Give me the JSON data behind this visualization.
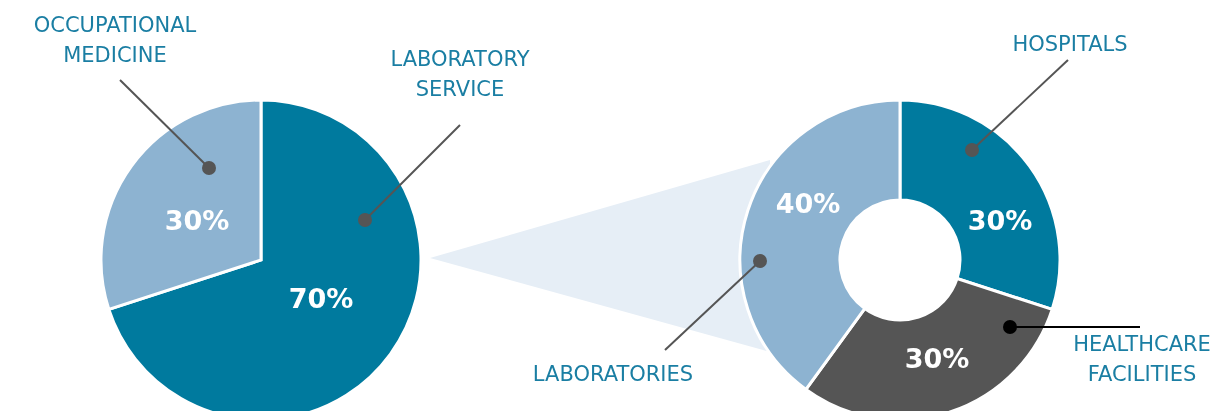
{
  "chart_data": [
    {
      "type": "pie",
      "categories": [
        "LABORATORY SERVICE",
        "OCCUPATIONAL MEDICINE"
      ],
      "values": [
        70,
        30
      ],
      "value_labels": [
        "70%",
        "30%"
      ],
      "colors": [
        "#007a9e",
        "#8db3d1"
      ]
    },
    {
      "type": "donut",
      "categories": [
        "HOSPITALS",
        "HEALTHCARE FACILITIES",
        "LABORATORIES"
      ],
      "values": [
        30,
        30,
        40
      ],
      "value_labels": [
        "30%",
        "30%",
        "40%"
      ],
      "colors": [
        "#007a9e",
        "#555555",
        "#8db3d1"
      ]
    }
  ]
}
